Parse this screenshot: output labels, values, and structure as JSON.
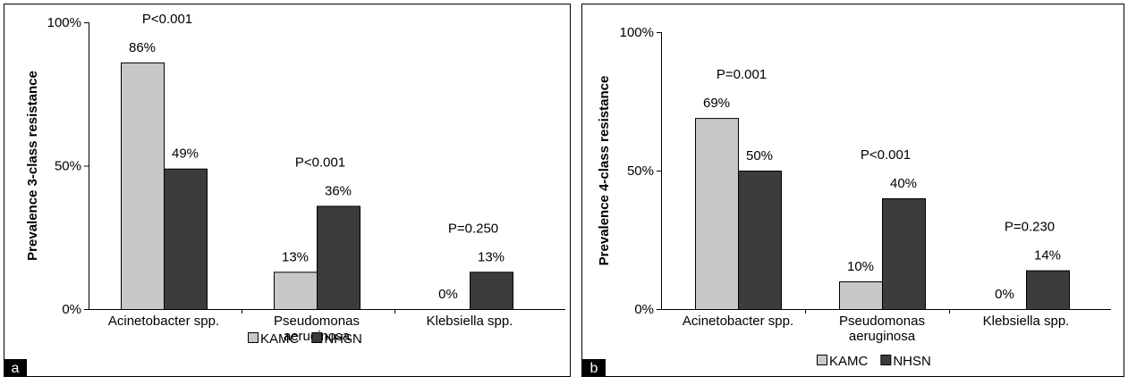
{
  "chart_data": [
    {
      "type": "bar",
      "panel_tag": "a",
      "ylabel": "Prevalence 3-class resistance",
      "ylim": [
        0,
        100
      ],
      "yticks": [
        "0%",
        "50%",
        "100%"
      ],
      "categories": [
        [
          "Acinetobacter spp."
        ],
        [
          "Pseudomonas",
          "aeruginosa"
        ],
        [
          "Klebsiella spp."
        ]
      ],
      "series": [
        {
          "name": "KAMC",
          "color": "#c8c8c8",
          "values": [
            86,
            13,
            0
          ],
          "labels": [
            "86%",
            "13%",
            "0%"
          ]
        },
        {
          "name": "NHSN",
          "color": "#3c3c3c",
          "values": [
            49,
            36,
            13
          ],
          "labels": [
            "49%",
            "36%",
            "13%"
          ]
        }
      ],
      "pvalues": [
        "P<0.001",
        "P<0.001",
        "P=0.250"
      ],
      "legend_position": "bottom"
    },
    {
      "type": "bar",
      "panel_tag": "b",
      "ylabel": "Prevalence 4-class resistance",
      "ylim": [
        0,
        100
      ],
      "yticks": [
        "0%",
        "50%",
        "100%"
      ],
      "categories": [
        [
          "Acinetobacter spp."
        ],
        [
          "Pseudomonas",
          "aeruginosa"
        ],
        [
          "Klebsiella spp."
        ]
      ],
      "series": [
        {
          "name": "KAMC",
          "color": "#c8c8c8",
          "values": [
            69,
            10,
            0
          ],
          "labels": [
            "69%",
            "10%",
            "0%"
          ]
        },
        {
          "name": "NHSN",
          "color": "#3c3c3c",
          "values": [
            50,
            40,
            14
          ],
          "labels": [
            "50%",
            "40%",
            "14%"
          ]
        }
      ],
      "pvalues": [
        "P=0.001",
        "P<0.001",
        "P=0.230"
      ],
      "legend_position": "bottom"
    }
  ]
}
